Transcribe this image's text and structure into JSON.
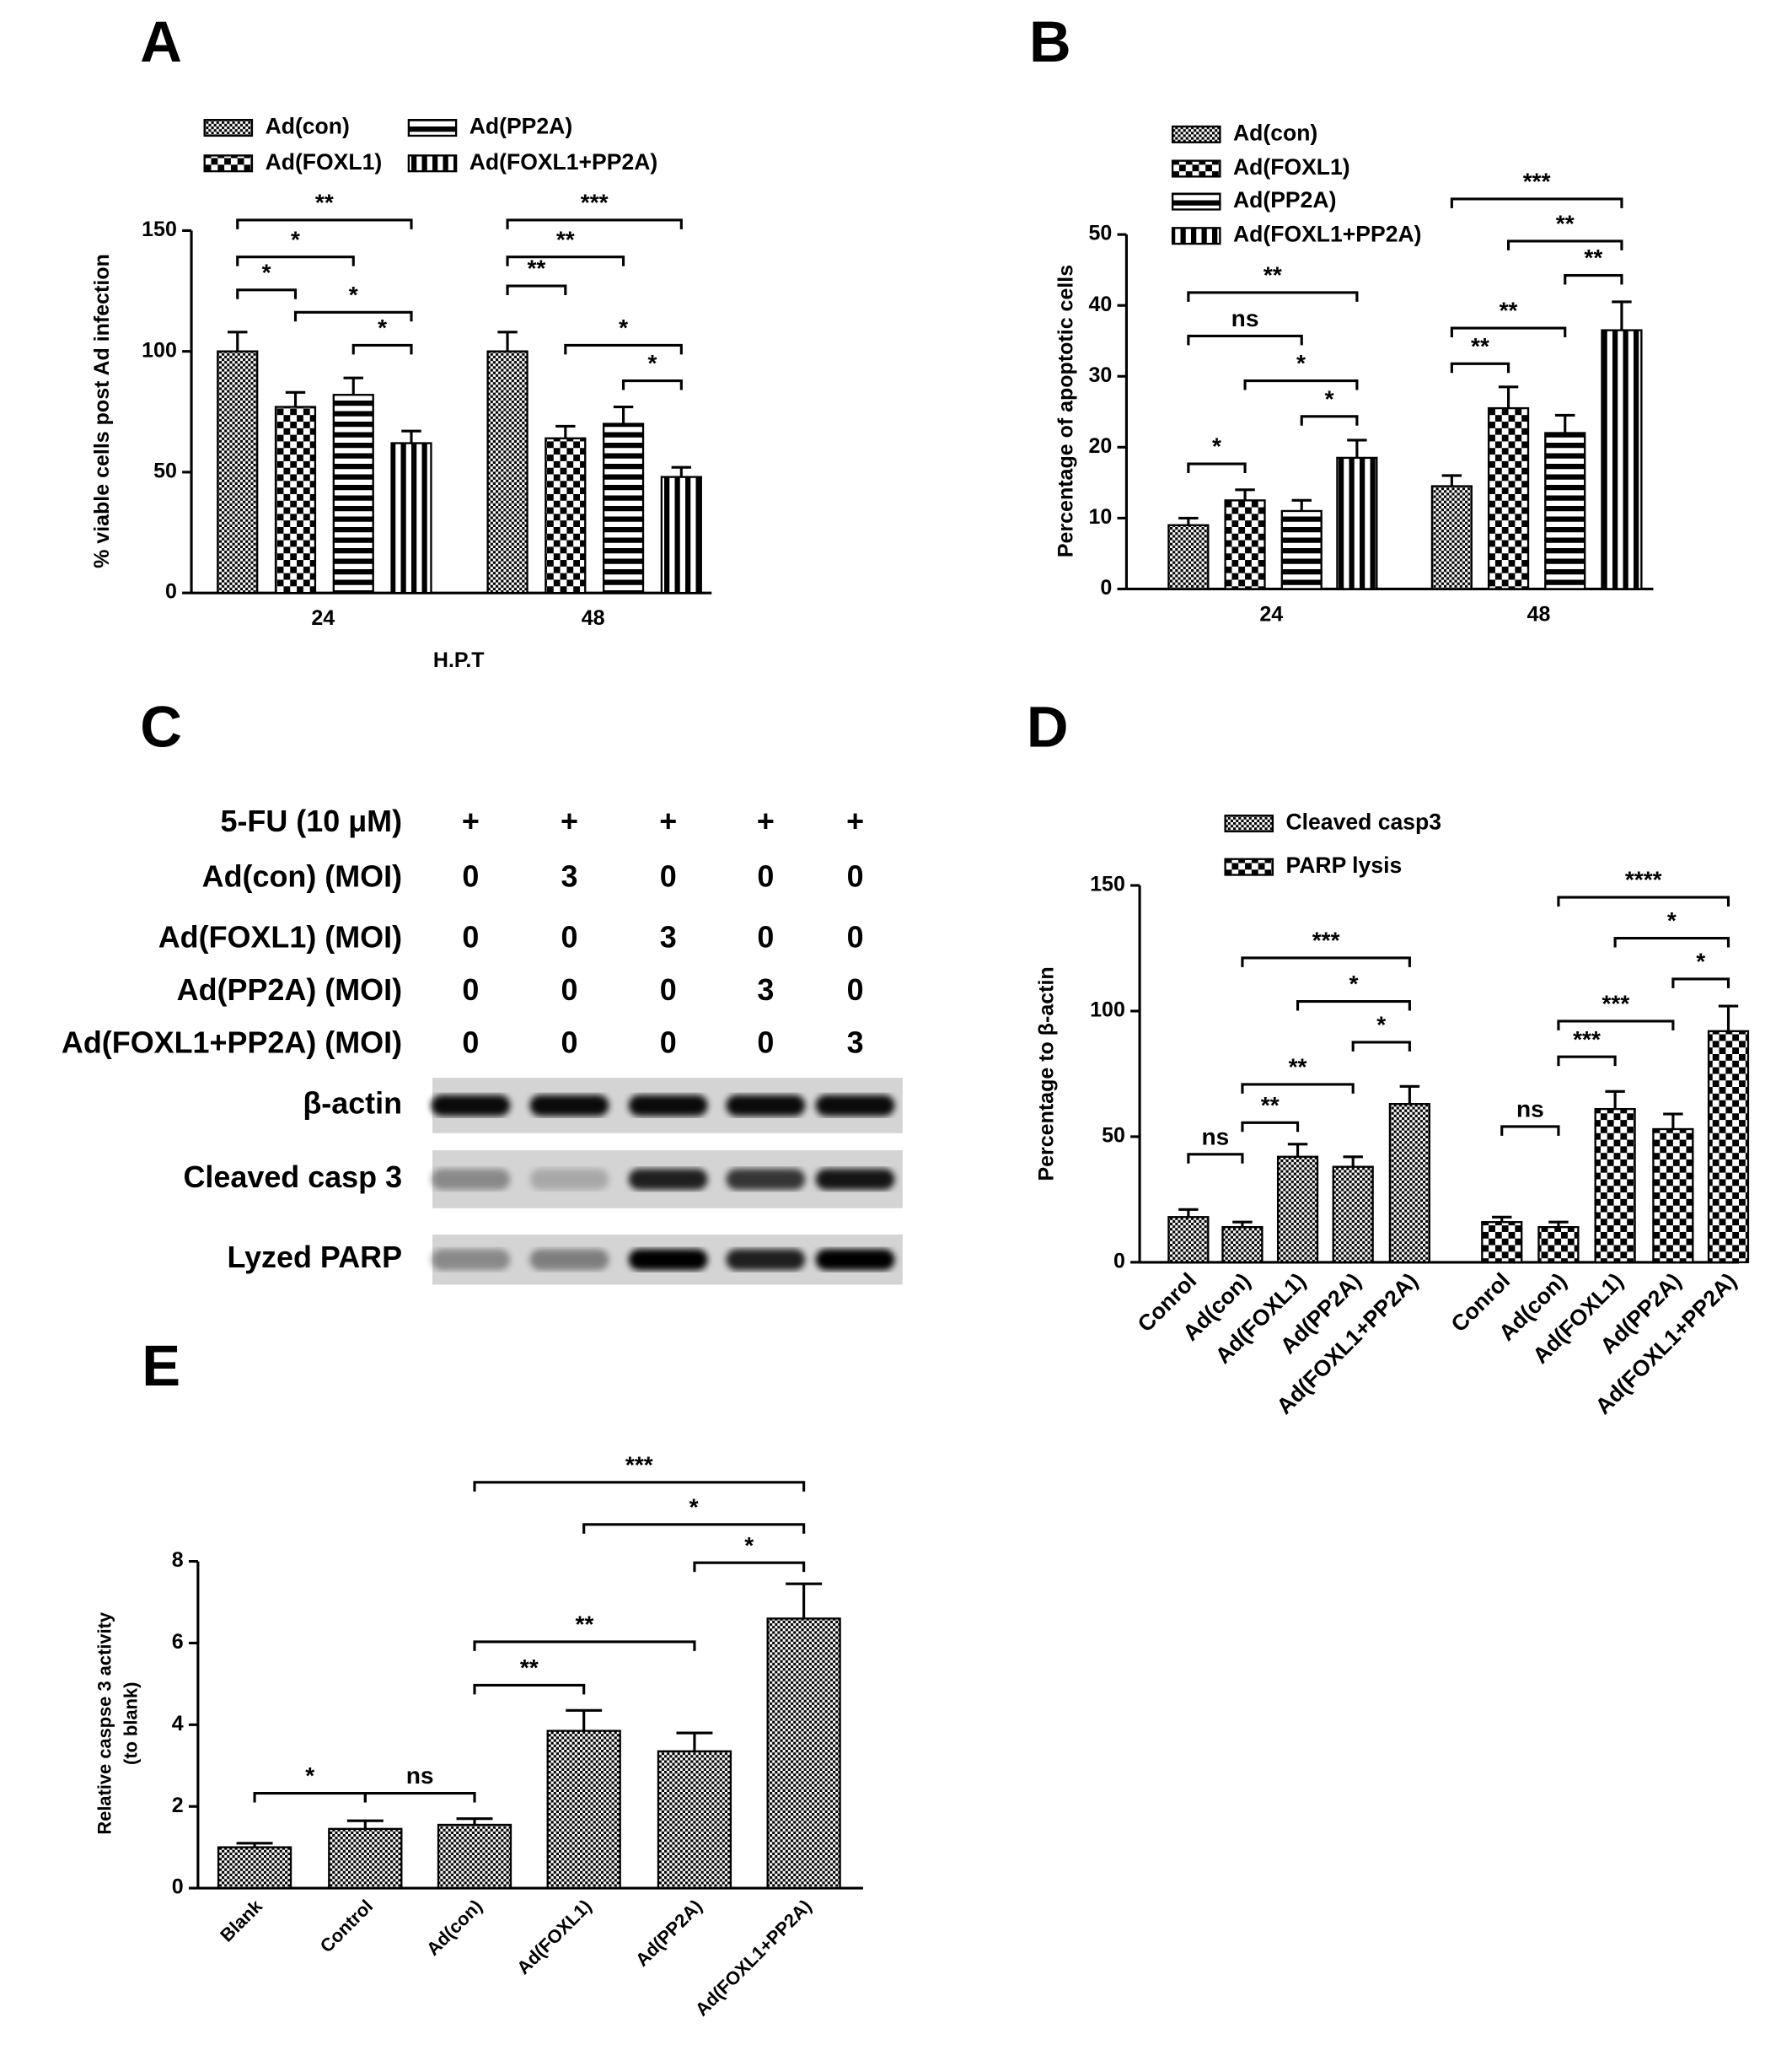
{
  "chart_data": [
    {
      "type": "bar",
      "panel": "A",
      "y_label": [
        "% viable cells post Ad infection"
      ],
      "x_label": "H.P.T",
      "categories": [
        "24",
        "48"
      ],
      "series": [
        {
          "name": "Ad(con)",
          "hatch": "fine-checker",
          "values": [
            100,
            100
          ],
          "errors": [
            8,
            8
          ]
        },
        {
          "name": "Ad(FOXL1)",
          "hatch": "checker",
          "values": [
            77,
            64
          ],
          "errors": [
            6,
            5
          ]
        },
        {
          "name": "Ad(PP2A)",
          "hatch": "hstripes",
          "values": [
            82,
            70
          ],
          "errors": [
            7,
            7
          ]
        },
        {
          "name": "Ad(FOXL1+PP2A)",
          "hatch": "vstripes",
          "values": [
            62,
            48
          ],
          "errors": [
            5,
            4
          ]
        }
      ],
      "ylim": [
        0,
        150
      ],
      "yticks": [
        0,
        50,
        100,
        150
      ],
      "annotations": [
        "**",
        "*",
        "*",
        "*",
        "*",
        "***",
        "**",
        "**",
        "*",
        "*"
      ]
    },
    {
      "type": "bar",
      "panel": "B",
      "y_label": [
        "Percentage of apoptotic cells"
      ],
      "categories": [
        "24",
        "48"
      ],
      "series": [
        {
          "name": "Ad(con)",
          "hatch": "fine-checker",
          "values": [
            9,
            14.5
          ],
          "errors": [
            1,
            1.5
          ]
        },
        {
          "name": "Ad(FOXL1)",
          "hatch": "checker",
          "values": [
            12.5,
            25.5
          ],
          "errors": [
            1.5,
            3
          ]
        },
        {
          "name": "Ad(PP2A)",
          "hatch": "hstripes",
          "values": [
            11,
            22
          ],
          "errors": [
            1.5,
            2.5
          ]
        },
        {
          "name": "Ad(FOXL1+PP2A)",
          "hatch": "vstripes",
          "values": [
            18.5,
            36.5
          ],
          "errors": [
            2.5,
            4
          ]
        }
      ],
      "ylim": [
        0,
        50
      ],
      "yticks": [
        0,
        10,
        20,
        30,
        40,
        50
      ],
      "annotations": [
        "*",
        "ns",
        "**",
        "*",
        "*",
        "***",
        "**",
        "**",
        "**",
        "**"
      ]
    },
    {
      "type": "blot",
      "panel": "C",
      "rows": [
        {
          "label": "5-FU (10 μM)",
          "cells": [
            "+",
            "+",
            "+",
            "+",
            "+"
          ]
        },
        {
          "label": "Ad(con) (MOI)",
          "cells": [
            "0",
            "3",
            "0",
            "0",
            "0"
          ]
        },
        {
          "label": "Ad(FOXL1) (MOI)",
          "cells": [
            "0",
            "0",
            "3",
            "0",
            "0"
          ]
        },
        {
          "label": "Ad(PP2A) (MOI)",
          "cells": [
            "0",
            "0",
            "0",
            "3",
            "0"
          ]
        },
        {
          "label": "Ad(FOXL1+PP2A) (MOI)",
          "cells": [
            "0",
            "0",
            "0",
            "0",
            "3"
          ]
        }
      ],
      "blots": [
        "β-actin",
        "Cleaved casp 3",
        "Lyzed PARP"
      ]
    },
    {
      "type": "bar",
      "panel": "D",
      "y_label": [
        "Percentage to β-actin"
      ],
      "categories": [
        "Conrol",
        "Ad(con)",
        "Ad(FOXL1)",
        "Ad(PP2A)",
        "Ad(FOXL1+PP2A)"
      ],
      "series": [
        {
          "name": "Cleaved casp3",
          "hatch": "fine-checker",
          "values": [
            18,
            14,
            42,
            38,
            63
          ],
          "errors": [
            3,
            2,
            5,
            4,
            7
          ]
        },
        {
          "name": "PARP lysis",
          "hatch": "checker",
          "values": [
            16,
            14,
            61,
            53,
            92
          ],
          "errors": [
            2,
            2,
            7,
            6,
            10
          ]
        }
      ],
      "ylim": [
        0,
        150
      ],
      "yticks": [
        0,
        50,
        100,
        150
      ],
      "annotations": [
        "ns",
        "**",
        "**",
        "*",
        "*",
        "***",
        "ns",
        "***",
        "***",
        "*",
        "*",
        "****"
      ]
    },
    {
      "type": "bar",
      "panel": "E",
      "y_label": [
        "Relative caspse 3 activity",
        "(to blank)"
      ],
      "categories": [
        "Blank",
        "Control",
        "Ad(con)",
        "Ad(FOXL1)",
        "Ad(PP2A)",
        "Ad(FOXL1+PP2A)"
      ],
      "hatch": "fine-checker",
      "values": [
        1,
        1.45,
        1.55,
        3.85,
        3.35,
        6.6
      ],
      "errors": [
        0.1,
        0.2,
        0.15,
        0.5,
        0.45,
        0.85
      ],
      "ylim": [
        0,
        8
      ],
      "yticks": [
        0,
        2,
        4,
        6,
        8
      ],
      "annotations": [
        "*",
        "ns",
        "**",
        "**",
        "*",
        "*",
        "***"
      ]
    }
  ]
}
